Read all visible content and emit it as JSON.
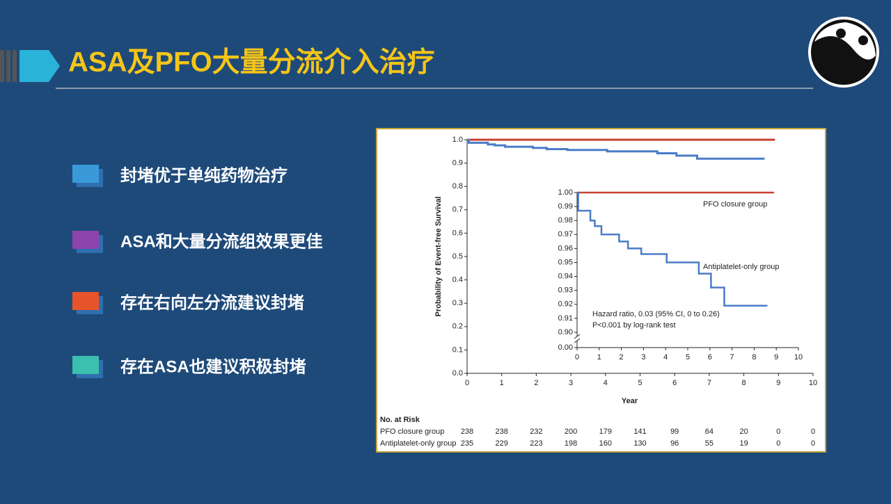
{
  "slide": {
    "title": "ASA及PFO大量分流介入治疗",
    "bullets": [
      {
        "text": "封堵优于单纯药物治疗",
        "color": "#3a9ad9"
      },
      {
        "text": "ASA和大量分流组效果更佳",
        "color": "#8e44ad"
      },
      {
        "text": "存在右向左分流建议封堵",
        "color": "#e8542a"
      },
      {
        "text": "存在ASA也建议积极封堵",
        "color": "#3cbfae"
      }
    ]
  },
  "chart_data": [
    {
      "type": "line",
      "step": true,
      "x_label": "Year",
      "y_label": "Probability of Event-free Survival",
      "xlim": [
        0,
        10
      ],
      "xticks": [
        0,
        1,
        2,
        3,
        4,
        5,
        6,
        7,
        8,
        9,
        10
      ],
      "ylim": [
        0,
        1.0
      ],
      "yticks": [
        {
          "value": 0,
          "label": "0.0"
        },
        0.1,
        0.2,
        0.3,
        0.4,
        0.5,
        0.6,
        0.7,
        0.8,
        0.9,
        {
          "value": 1.0,
          "label": "1.0"
        }
      ],
      "series": [
        {
          "name": "PFO closure group",
          "color": "#c8402f",
          "x": [
            0,
            8.9
          ],
          "values": [
            1.0,
            1.0
          ]
        },
        {
          "name": "Antiplatelet-only group",
          "color": "#4a7bc8",
          "x": [
            0,
            0.05,
            0.6,
            0.8,
            1.1,
            1.9,
            2.3,
            2.9,
            4.05,
            5.5,
            6.05,
            6.65,
            8.6
          ],
          "values": [
            1.0,
            0.987,
            0.98,
            0.976,
            0.97,
            0.965,
            0.96,
            0.956,
            0.95,
            0.942,
            0.932,
            0.919,
            0.919
          ]
        }
      ],
      "risk_table": {
        "title": "No. at Risk",
        "rows": [
          [
            238,
            238,
            232,
            200,
            179,
            141,
            99,
            64,
            20,
            0,
            0
          ],
          [
            235,
            229,
            223,
            198,
            160,
            130,
            96,
            55,
            19,
            0,
            0
          ]
        ]
      }
    },
    {
      "type": "line",
      "step": true,
      "axis_break": true,
      "xlim": [
        0,
        10
      ],
      "xticks": [
        0,
        1,
        2,
        3,
        4,
        5,
        6,
        7,
        8,
        9,
        10
      ],
      "ylim": [
        0.9,
        1.0
      ],
      "yticks": [
        {
          "value": 1.0,
          "label": "1.00"
        },
        0.99,
        0.98,
        0.97,
        0.96,
        0.95,
        0.94,
        0.93,
        0.92,
        0.91,
        {
          "value": 0.9,
          "label": "0.90"
        },
        {
          "value": 0,
          "label": "0.00"
        }
      ],
      "series": [
        {
          "name": "PFO closure group",
          "color": "#c8402f",
          "x": [
            0,
            8.9
          ],
          "values": [
            1.0,
            1.0
          ]
        },
        {
          "name": "Antiplatelet-only group",
          "color": "#4a7bc8",
          "x": [
            0,
            0.05,
            0.6,
            0.8,
            1.1,
            1.9,
            2.3,
            2.9,
            4.05,
            5.5,
            6.05,
            6.65,
            8.6
          ],
          "values": [
            1.0,
            0.987,
            0.98,
            0.976,
            0.97,
            0.965,
            0.96,
            0.956,
            0.95,
            0.942,
            0.932,
            0.919,
            0.919
          ]
        }
      ],
      "annotations": [
        "Hazard ratio, 0.03 (95% CI, 0 to 0.26)",
        "P<0.001 by log-rank test"
      ]
    }
  ]
}
